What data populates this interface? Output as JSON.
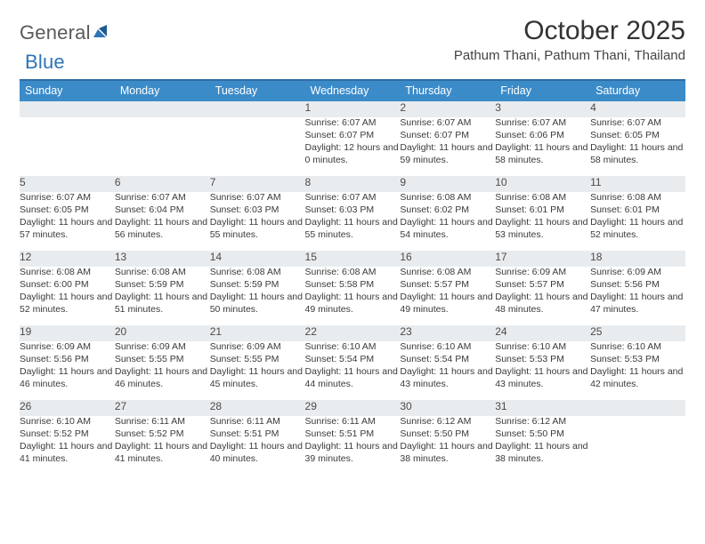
{
  "brand": {
    "word1": "General",
    "word2": "Blue"
  },
  "title": "October 2025",
  "location": "Pathum Thani, Pathum Thani, Thailand",
  "colors": {
    "header_bg": "#3b8bc9",
    "header_border": "#2e6ea3",
    "daynum_bg": "#e9ecef",
    "text": "#333333",
    "logo_gray": "#5a5a5a",
    "logo_blue": "#2e75b6"
  },
  "daynames": [
    "Sunday",
    "Monday",
    "Tuesday",
    "Wednesday",
    "Thursday",
    "Friday",
    "Saturday"
  ],
  "weeks": [
    [
      null,
      null,
      null,
      {
        "n": "1",
        "sr": "6:07 AM",
        "ss": "6:07 PM",
        "dl": "12 hours and 0 minutes."
      },
      {
        "n": "2",
        "sr": "6:07 AM",
        "ss": "6:07 PM",
        "dl": "11 hours and 59 minutes."
      },
      {
        "n": "3",
        "sr": "6:07 AM",
        "ss": "6:06 PM",
        "dl": "11 hours and 58 minutes."
      },
      {
        "n": "4",
        "sr": "6:07 AM",
        "ss": "6:05 PM",
        "dl": "11 hours and 58 minutes."
      }
    ],
    [
      {
        "n": "5",
        "sr": "6:07 AM",
        "ss": "6:05 PM",
        "dl": "11 hours and 57 minutes."
      },
      {
        "n": "6",
        "sr": "6:07 AM",
        "ss": "6:04 PM",
        "dl": "11 hours and 56 minutes."
      },
      {
        "n": "7",
        "sr": "6:07 AM",
        "ss": "6:03 PM",
        "dl": "11 hours and 55 minutes."
      },
      {
        "n": "8",
        "sr": "6:07 AM",
        "ss": "6:03 PM",
        "dl": "11 hours and 55 minutes."
      },
      {
        "n": "9",
        "sr": "6:08 AM",
        "ss": "6:02 PM",
        "dl": "11 hours and 54 minutes."
      },
      {
        "n": "10",
        "sr": "6:08 AM",
        "ss": "6:01 PM",
        "dl": "11 hours and 53 minutes."
      },
      {
        "n": "11",
        "sr": "6:08 AM",
        "ss": "6:01 PM",
        "dl": "11 hours and 52 minutes."
      }
    ],
    [
      {
        "n": "12",
        "sr": "6:08 AM",
        "ss": "6:00 PM",
        "dl": "11 hours and 52 minutes."
      },
      {
        "n": "13",
        "sr": "6:08 AM",
        "ss": "5:59 PM",
        "dl": "11 hours and 51 minutes."
      },
      {
        "n": "14",
        "sr": "6:08 AM",
        "ss": "5:59 PM",
        "dl": "11 hours and 50 minutes."
      },
      {
        "n": "15",
        "sr": "6:08 AM",
        "ss": "5:58 PM",
        "dl": "11 hours and 49 minutes."
      },
      {
        "n": "16",
        "sr": "6:08 AM",
        "ss": "5:57 PM",
        "dl": "11 hours and 49 minutes."
      },
      {
        "n": "17",
        "sr": "6:09 AM",
        "ss": "5:57 PM",
        "dl": "11 hours and 48 minutes."
      },
      {
        "n": "18",
        "sr": "6:09 AM",
        "ss": "5:56 PM",
        "dl": "11 hours and 47 minutes."
      }
    ],
    [
      {
        "n": "19",
        "sr": "6:09 AM",
        "ss": "5:56 PM",
        "dl": "11 hours and 46 minutes."
      },
      {
        "n": "20",
        "sr": "6:09 AM",
        "ss": "5:55 PM",
        "dl": "11 hours and 46 minutes."
      },
      {
        "n": "21",
        "sr": "6:09 AM",
        "ss": "5:55 PM",
        "dl": "11 hours and 45 minutes."
      },
      {
        "n": "22",
        "sr": "6:10 AM",
        "ss": "5:54 PM",
        "dl": "11 hours and 44 minutes."
      },
      {
        "n": "23",
        "sr": "6:10 AM",
        "ss": "5:54 PM",
        "dl": "11 hours and 43 minutes."
      },
      {
        "n": "24",
        "sr": "6:10 AM",
        "ss": "5:53 PM",
        "dl": "11 hours and 43 minutes."
      },
      {
        "n": "25",
        "sr": "6:10 AM",
        "ss": "5:53 PM",
        "dl": "11 hours and 42 minutes."
      }
    ],
    [
      {
        "n": "26",
        "sr": "6:10 AM",
        "ss": "5:52 PM",
        "dl": "11 hours and 41 minutes."
      },
      {
        "n": "27",
        "sr": "6:11 AM",
        "ss": "5:52 PM",
        "dl": "11 hours and 41 minutes."
      },
      {
        "n": "28",
        "sr": "6:11 AM",
        "ss": "5:51 PM",
        "dl": "11 hours and 40 minutes."
      },
      {
        "n": "29",
        "sr": "6:11 AM",
        "ss": "5:51 PM",
        "dl": "11 hours and 39 minutes."
      },
      {
        "n": "30",
        "sr": "6:12 AM",
        "ss": "5:50 PM",
        "dl": "11 hours and 38 minutes."
      },
      {
        "n": "31",
        "sr": "6:12 AM",
        "ss": "5:50 PM",
        "dl": "11 hours and 38 minutes."
      },
      null
    ]
  ],
  "labels": {
    "sunrise": "Sunrise:",
    "sunset": "Sunset:",
    "daylight": "Daylight:"
  }
}
